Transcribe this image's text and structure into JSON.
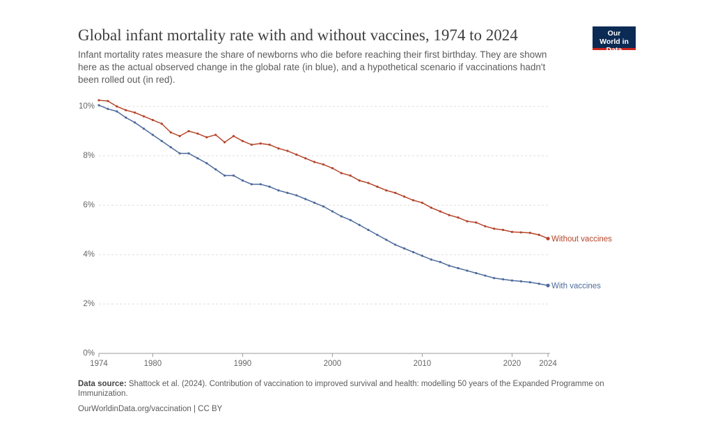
{
  "chart_data": {
    "type": "line",
    "title": "Global infant mortality rate with and without vaccines, 1974 to 2024",
    "subtitle": "Infant mortality rates measure the share of newborns who die before reaching their first birthday. They are shown here as the actual observed change in the global rate (in blue), and a hypothetical scenario if vaccinations hadn't been rolled out (in red).",
    "logo": "Our World in Data",
    "source_label": "Data source:",
    "source": "Shattock et al. (2024). Contribution of vaccination to improved survival and health: modelling 50 years of the Expanded Programme on Immunization.",
    "url": "OurWorldinData.org/vaccination | CC BY",
    "x": [
      1974,
      1975,
      1976,
      1977,
      1978,
      1979,
      1980,
      1981,
      1982,
      1983,
      1984,
      1985,
      1986,
      1987,
      1988,
      1989,
      1990,
      1991,
      1992,
      1993,
      1994,
      1995,
      1996,
      1997,
      1998,
      1999,
      2000,
      2001,
      2002,
      2003,
      2004,
      2005,
      2006,
      2007,
      2008,
      2009,
      2010,
      2011,
      2012,
      2013,
      2014,
      2015,
      2016,
      2017,
      2018,
      2019,
      2020,
      2021,
      2022,
      2023,
      2024
    ],
    "series": [
      {
        "name": "Without vaccines",
        "color": "#b5442a",
        "values": [
          10.25,
          10.22,
          10.0,
          9.85,
          9.75,
          9.6,
          9.45,
          9.3,
          8.95,
          8.8,
          9.0,
          8.9,
          8.75,
          8.85,
          8.55,
          8.8,
          8.6,
          8.45,
          8.5,
          8.45,
          8.3,
          8.2,
          8.05,
          7.9,
          7.75,
          7.65,
          7.5,
          7.3,
          7.2,
          7.0,
          6.9,
          6.75,
          6.6,
          6.5,
          6.35,
          6.2,
          6.1,
          5.9,
          5.75,
          5.6,
          5.5,
          5.35,
          5.3,
          5.15,
          5.05,
          5.0,
          4.92,
          4.9,
          4.88,
          4.8,
          4.65
        ]
      },
      {
        "name": "With vaccines",
        "color": "#4c6a9c",
        "values": [
          10.05,
          9.9,
          9.8,
          9.55,
          9.35,
          9.1,
          8.85,
          8.6,
          8.35,
          8.1,
          8.1,
          7.9,
          7.7,
          7.45,
          7.2,
          7.2,
          7.0,
          6.85,
          6.85,
          6.75,
          6.6,
          6.5,
          6.4,
          6.25,
          6.1,
          5.95,
          5.75,
          5.55,
          5.4,
          5.2,
          5.0,
          4.8,
          4.6,
          4.4,
          4.25,
          4.1,
          3.95,
          3.8,
          3.7,
          3.55,
          3.45,
          3.35,
          3.25,
          3.15,
          3.05,
          3.0,
          2.95,
          2.92,
          2.88,
          2.82,
          2.75
        ]
      }
    ],
    "xlim": [
      1974,
      2024
    ],
    "xticks": [
      1974,
      1980,
      1990,
      2000,
      2010,
      2020,
      2024
    ],
    "ylim": [
      0,
      10
    ],
    "yticks": [
      {
        "value": 0,
        "label": "0%"
      },
      {
        "value": 2,
        "label": "2%"
      },
      {
        "value": 4,
        "label": "4%"
      },
      {
        "value": 6,
        "label": "6%"
      },
      {
        "value": 8,
        "label": "8%"
      },
      {
        "value": 10,
        "label": "10%"
      }
    ],
    "grid": true
  }
}
